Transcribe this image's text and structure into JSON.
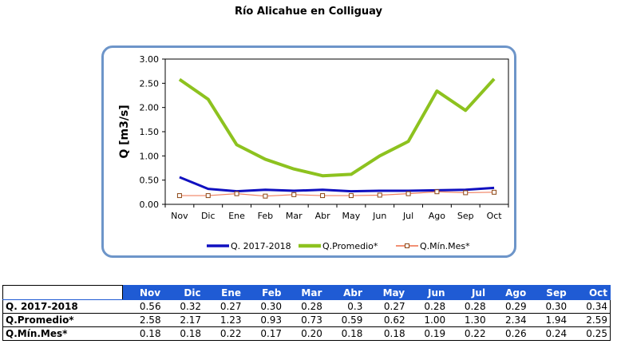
{
  "title": "Río Alicahue en Colliguay",
  "chart_data": {
    "type": "line",
    "title": "Río Alicahue en Colliguay",
    "xlabel": "",
    "ylabel": "Q [m3/s]",
    "ylim": [
      0,
      3.0
    ],
    "yticks": [
      "0.00",
      "0.50",
      "1.00",
      "1.50",
      "2.00",
      "2.50",
      "3.00"
    ],
    "grid": false,
    "legend_position": "bottom",
    "categories": [
      "Nov",
      "Dic",
      "Ene",
      "Feb",
      "Mar",
      "Abr",
      "May",
      "Jun",
      "Jul",
      "Ago",
      "Sep",
      "Oct"
    ],
    "series": [
      {
        "name": "Q. 2017-2018",
        "color": "#1010c0",
        "marker": "none",
        "values": [
          0.56,
          0.32,
          0.27,
          0.3,
          0.28,
          0.3,
          0.27,
          0.28,
          0.28,
          0.29,
          0.3,
          0.34
        ]
      },
      {
        "name": "Q.Promedio*",
        "color": "#8dc21f",
        "marker": "none",
        "values": [
          2.58,
          2.17,
          1.23,
          0.93,
          0.73,
          0.59,
          0.62,
          1.0,
          1.3,
          2.34,
          1.94,
          2.59
        ]
      },
      {
        "name": "Q.Mín.Mes*",
        "color": "#f08060",
        "marker": "square",
        "values": [
          0.18,
          0.18,
          0.22,
          0.17,
          0.2,
          0.18,
          0.18,
          0.19,
          0.22,
          0.26,
          0.24,
          0.25
        ]
      }
    ]
  },
  "table": {
    "header": [
      "Nov",
      "Dic",
      "Ene",
      "Feb",
      "Mar",
      "Abr",
      "May",
      "Jun",
      "Jul",
      "Ago",
      "Sep",
      "Oct"
    ],
    "rows": [
      {
        "label": "Q. 2017-2018",
        "cells": [
          "0.56",
          "0.32",
          "0.27",
          "0.30",
          "0.28",
          "0.3",
          "0.27",
          "0.28",
          "0.28",
          "0.29",
          "0.30",
          "0.34"
        ]
      },
      {
        "label": "Q.Promedio*",
        "cells": [
          "2.58",
          "2.17",
          "1.23",
          "0.93",
          "0.73",
          "0.59",
          "0.62",
          "1.00",
          "1.30",
          "2.34",
          "1.94",
          "2.59"
        ]
      },
      {
        "label": "Q.Mín.Mes*",
        "cells": [
          "0.18",
          "0.18",
          "0.22",
          "0.17",
          "0.20",
          "0.18",
          "0.18",
          "0.19",
          "0.22",
          "0.26",
          "0.24",
          "0.25"
        ]
      }
    ]
  }
}
